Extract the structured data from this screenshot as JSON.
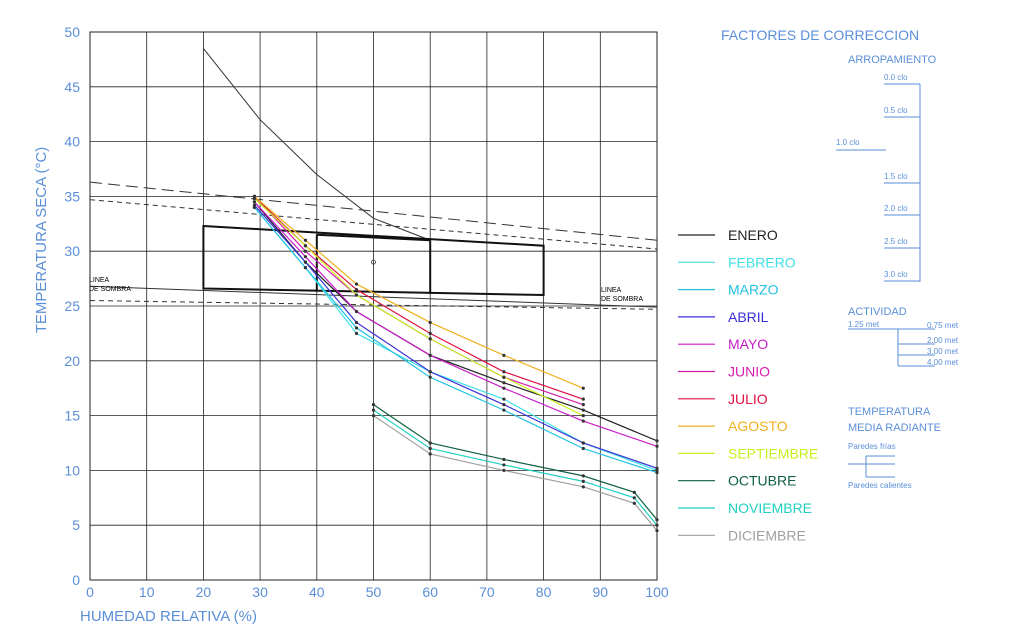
{
  "chart_data": {
    "type": "line",
    "xlabel": "HUMEDAD RELATIVA (%)",
    "ylabel": "TEMPERATURA SECA (°C)",
    "xlim": [
      0,
      100
    ],
    "ylim": [
      0,
      50
    ],
    "xticks": [
      0,
      10,
      20,
      30,
      40,
      50,
      60,
      70,
      80,
      90,
      100
    ],
    "yticks": [
      0,
      5,
      10,
      15,
      20,
      25,
      30,
      35,
      40,
      45,
      50
    ],
    "grid": true,
    "legend_position": "right",
    "series": [
      {
        "name": "ENERO",
        "color": "#222222",
        "x": [
          29,
          38,
          47,
          60,
          73,
          87,
          100
        ],
        "y": [
          34.5,
          29.0,
          24.5,
          20.5,
          18.0,
          15.5,
          12.7
        ]
      },
      {
        "name": "FEBRERO",
        "color": "#40e0e8",
        "x": [
          29,
          38,
          47,
          60,
          73,
          87,
          100
        ],
        "y": [
          34.0,
          28.5,
          22.5,
          19.0,
          16.5,
          12.5,
          10.0
        ]
      },
      {
        "name": "MARZO",
        "color": "#22c2e0",
        "x": [
          29,
          38,
          47,
          60,
          73,
          87,
          100
        ],
        "y": [
          34.0,
          28.5,
          23.0,
          18.5,
          15.5,
          12.0,
          9.8
        ]
      },
      {
        "name": "ABRIL",
        "color": "#3b2fd8",
        "x": [
          29,
          38,
          47,
          60,
          73,
          87,
          100
        ],
        "y": [
          34.2,
          29.0,
          23.5,
          19.0,
          16.0,
          12.5,
          10.2
        ]
      },
      {
        "name": "MAYO",
        "color": "#c81ec8",
        "x": [
          29,
          38,
          47,
          60,
          73,
          87,
          100
        ],
        "y": [
          34.5,
          29.5,
          24.5,
          20.5,
          17.5,
          14.5,
          12.2
        ]
      },
      {
        "name": "JUNIO",
        "color": "#d81eb0",
        "x": [
          29,
          38,
          47,
          60,
          73,
          87
        ],
        "y": [
          35.0,
          30.0,
          26.0,
          22.0,
          18.5,
          16.0
        ]
      },
      {
        "name": "JULIO",
        "color": "#e01040",
        "x": [
          29,
          38,
          47,
          60,
          73,
          87
        ],
        "y": [
          35.0,
          30.5,
          26.5,
          22.5,
          19.0,
          16.5
        ]
      },
      {
        "name": "AGOSTO",
        "color": "#f0b020",
        "x": [
          29,
          38,
          47,
          60,
          73,
          87
        ],
        "y": [
          35.0,
          31.0,
          27.0,
          23.5,
          20.5,
          17.5
        ]
      },
      {
        "name": "SEPTIEMBRE",
        "color": "#c8f020",
        "x": [
          29,
          38,
          47,
          60,
          73,
          87
        ],
        "y": [
          34.8,
          30.5,
          26.0,
          22.0,
          18.5,
          15.0
        ]
      },
      {
        "name": "OCTUBRE",
        "color": "#106040",
        "x": [
          50,
          60,
          73,
          87,
          96,
          100
        ],
        "y": [
          16.0,
          12.5,
          11.0,
          9.5,
          8.0,
          5.5
        ]
      },
      {
        "name": "NOVIEMBRE",
        "color": "#20d0c0",
        "x": [
          50,
          60,
          73,
          87,
          96,
          100
        ],
        "y": [
          15.5,
          12.0,
          10.5,
          9.0,
          7.5,
          5.0
        ]
      },
      {
        "name": "DICIEMBRE",
        "color": "#a0a0a0",
        "x": [
          50,
          60,
          73,
          87,
          96,
          100
        ],
        "y": [
          15.0,
          11.5,
          10.0,
          8.5,
          7.0,
          4.5
        ]
      }
    ],
    "annotations": {
      "limit_curve": {
        "x": [
          20,
          30,
          40,
          50,
          60
        ],
        "y": [
          48.5,
          42,
          37,
          33,
          31
        ]
      },
      "comfort_zone_outer": {
        "x": [
          20,
          80,
          80,
          20
        ],
        "y": [
          32.3,
          30.5,
          26.0,
          26.6
        ]
      },
      "comfort_zone_mid_60": {
        "x": [
          60,
          60
        ],
        "y": [
          31.0,
          26.1
        ]
      },
      "comfort_zone_inner_top": {
        "x": [
          40,
          60
        ],
        "y": [
          31.5,
          31.0
        ]
      },
      "comfort_zone_inner_left": {
        "x": [
          40,
          40
        ],
        "y": [
          31.5,
          26.3
        ]
      },
      "dashed_upper": {
        "x": [
          0,
          100
        ],
        "y": [
          36.3,
          31.0
        ]
      },
      "dashed_lower": {
        "x": [
          0,
          100
        ],
        "y": [
          34.7,
          30.2
        ]
      },
      "shade_line_solid": {
        "x": [
          0,
          100
        ],
        "y": [
          26.8,
          24.9
        ]
      },
      "shade_line_dashed": {
        "x": [
          0,
          100
        ],
        "y": [
          25.5,
          24.7
        ]
      }
    }
  },
  "shade_labels": {
    "left_line1": "LINEA",
    "left_line2": "DE SOMBRA",
    "right_line1": "LINEA",
    "right_line2": "DE SOMBRA"
  },
  "correction": {
    "title": "FACTORES DE CORRECCION",
    "arropamiento": {
      "title": "ARROPAMIENTO",
      "base": "1.0 clo",
      "levels": [
        "0.0 clo",
        "0.5 clo",
        "1.5 clo",
        "2.0 clo",
        "2.5 clo",
        "3.0 clo"
      ]
    },
    "actividad": {
      "title": "ACTIVIDAD",
      "base": "1.25 met",
      "levels": [
        "0.75 met",
        "2.00 met",
        "3.00 met",
        "4.00 met"
      ]
    },
    "radiante": {
      "title_line1": "TEMPERATURA",
      "title_line2": "MEDIA RADIANTE",
      "frias": "Paredes frías",
      "calientes": "Paredes calientes"
    }
  }
}
